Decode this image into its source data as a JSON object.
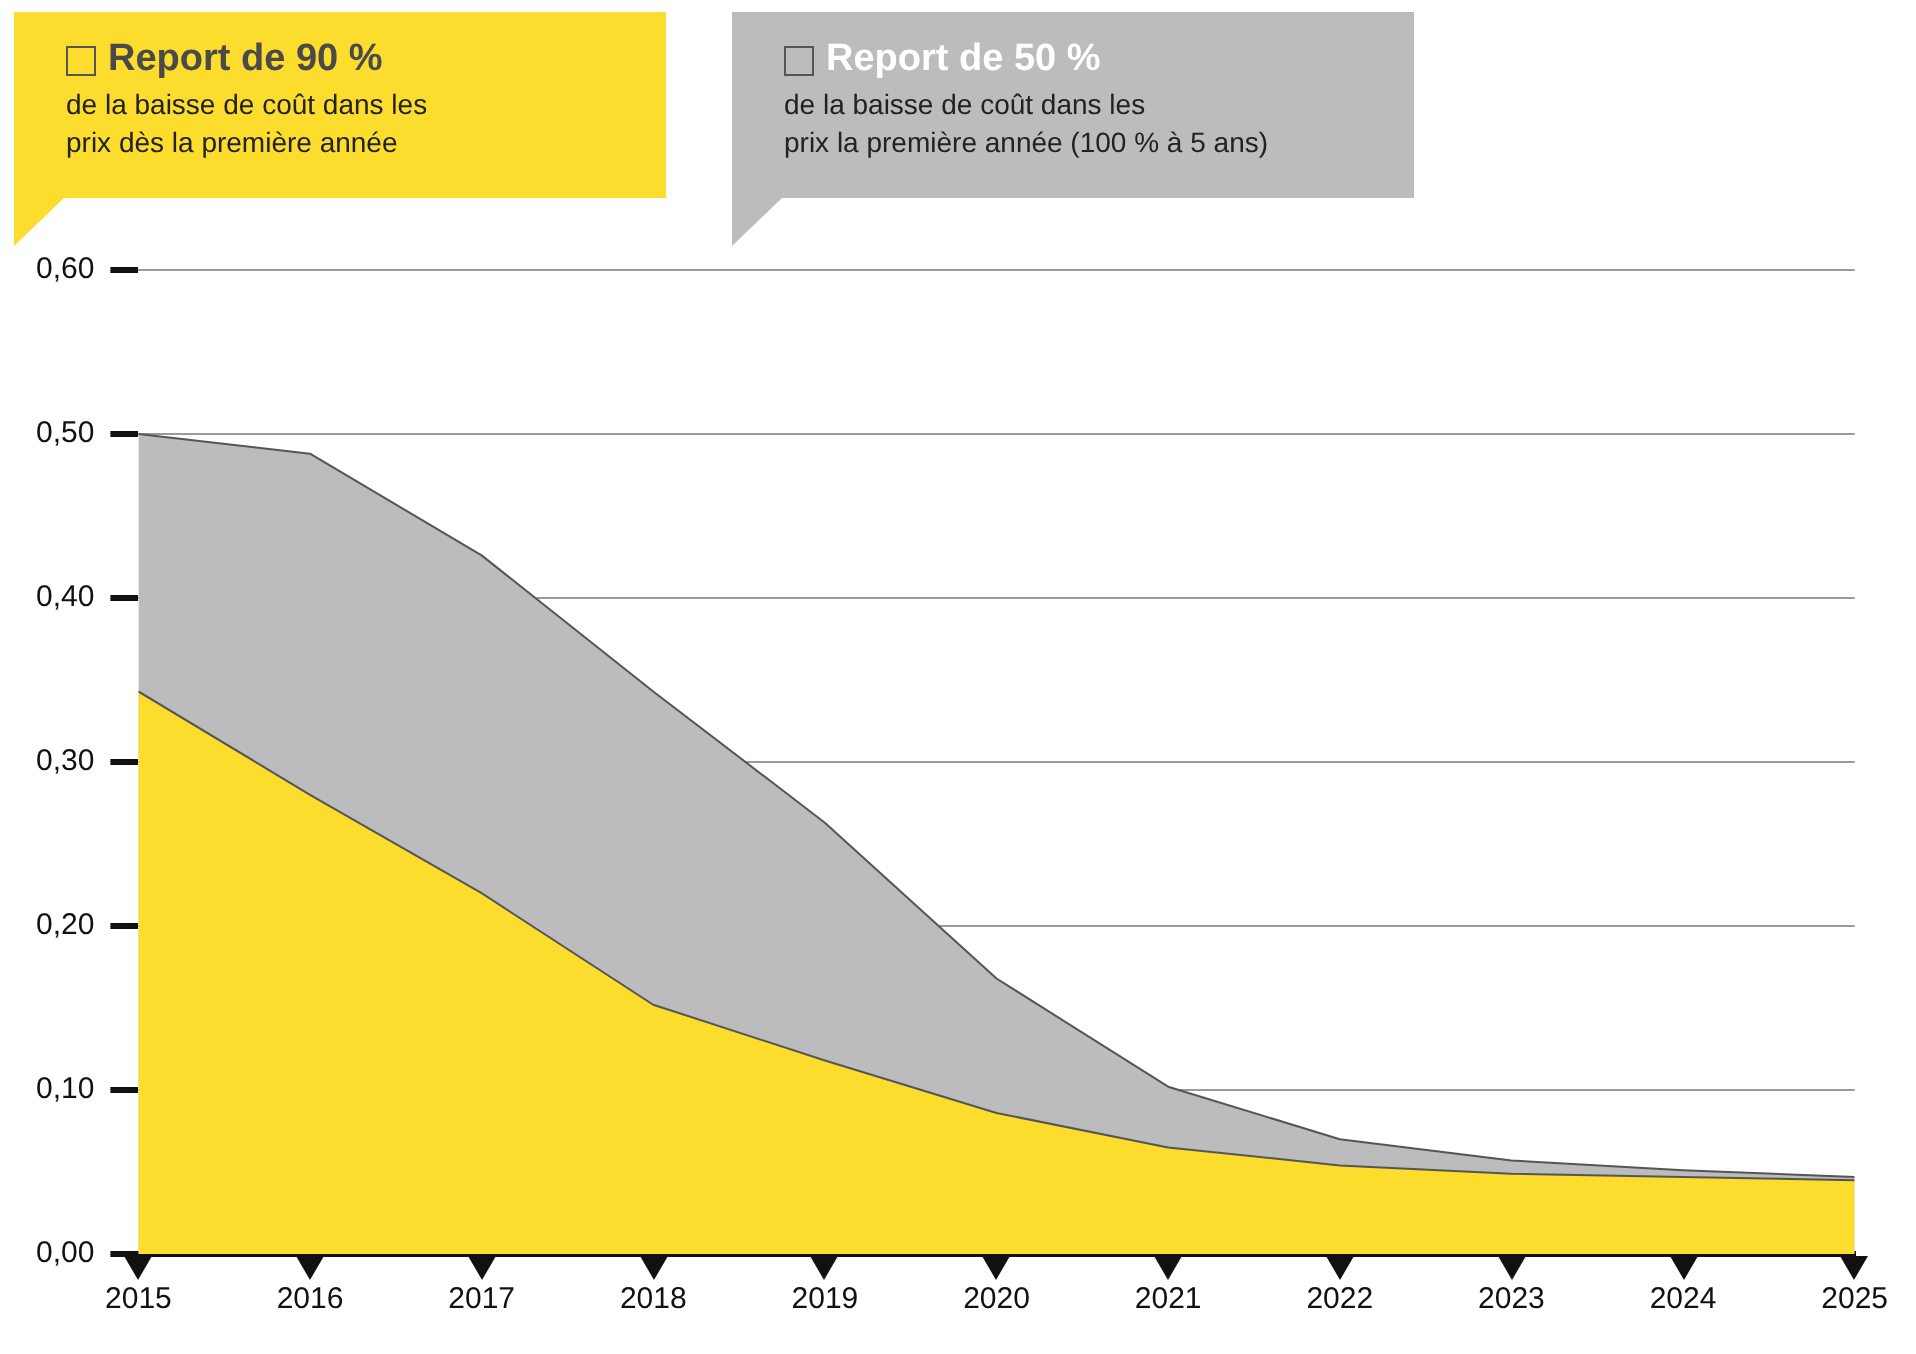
{
  "chart_data": {
    "type": "area",
    "x": [
      2015,
      2016,
      2017,
      2018,
      2019,
      2020,
      2021,
      2022,
      2023,
      2024,
      2025
    ],
    "series": [
      {
        "name": "Report de 90 %",
        "color": "#fcdc2c",
        "values": [
          0.343,
          0.28,
          0.22,
          0.152,
          0.118,
          0.086,
          0.065,
          0.054,
          0.049,
          0.047,
          0.045
        ]
      },
      {
        "name": "Report de 50 %",
        "color": "#bcbcbe",
        "values": [
          0.5,
          0.488,
          0.426,
          0.343,
          0.263,
          0.168,
          0.102,
          0.07,
          0.057,
          0.051,
          0.047
        ]
      }
    ],
    "annotations": [
      "de la baisse de coût dans les\nprix dès la première année",
      "de la baisse de coût dans les\nprix la première année (100 % à 5 ans)"
    ],
    "xlim": [
      2015,
      2025
    ],
    "xticks": [
      2015,
      2016,
      2017,
      2018,
      2019,
      2020,
      2021,
      2022,
      2023,
      2024,
      2025
    ],
    "ylim": [
      0,
      0.6
    ],
    "yticks": [
      {
        "value": 0,
        "label": "0,00"
      },
      {
        "value": 0.1,
        "label": "0,10"
      },
      {
        "value": 0.2,
        "label": "0,20"
      },
      {
        "value": 0.3,
        "label": "0,30"
      },
      {
        "value": 0.4,
        "label": "0,40"
      },
      {
        "value": 0.5,
        "label": "0,50"
      },
      {
        "value": 0.6,
        "label": "0,60"
      }
    ],
    "grid": "y",
    "legend": "top"
  }
}
